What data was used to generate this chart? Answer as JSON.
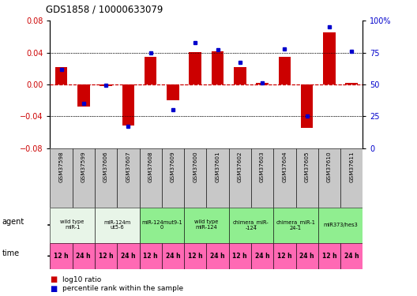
{
  "title": "GDS1858 / 10000633079",
  "samples": [
    "GSM37598",
    "GSM37599",
    "GSM37606",
    "GSM37607",
    "GSM37608",
    "GSM37609",
    "GSM37600",
    "GSM37601",
    "GSM37602",
    "GSM37603",
    "GSM37604",
    "GSM37605",
    "GSM37610",
    "GSM37611"
  ],
  "log10_ratio": [
    0.022,
    -0.028,
    -0.002,
    -0.052,
    0.035,
    -0.02,
    0.041,
    0.042,
    0.022,
    0.002,
    0.035,
    -0.055,
    0.065,
    0.002
  ],
  "percentile_rank": [
    62,
    35,
    49,
    17,
    75,
    30,
    83,
    77,
    67,
    51,
    78,
    25,
    95,
    76
  ],
  "agent_groups": [
    {
      "label": "wild type\nmiR-1",
      "cols": [
        0,
        1
      ],
      "color": "#e8f5e8"
    },
    {
      "label": "miR-124m\nut5-6",
      "cols": [
        2,
        3
      ],
      "color": "#e8f5e8"
    },
    {
      "label": "miR-124mut9-1\n0",
      "cols": [
        4,
        5
      ],
      "color": "#90ee90"
    },
    {
      "label": "wild type\nmiR-124",
      "cols": [
        6,
        7
      ],
      "color": "#90ee90"
    },
    {
      "label": "chimera_miR-\n-124",
      "cols": [
        8,
        9
      ],
      "color": "#90ee90"
    },
    {
      "label": "chimera_miR-1\n24-1",
      "cols": [
        10,
        11
      ],
      "color": "#90ee90"
    },
    {
      "label": "miR373/hes3",
      "cols": [
        12,
        13
      ],
      "color": "#90ee90"
    }
  ],
  "time_labels": [
    "12 h",
    "24 h",
    "12 h",
    "24 h",
    "12 h",
    "24 h",
    "12 h",
    "24 h",
    "12 h",
    "24 h",
    "12 h",
    "24 h",
    "12 h",
    "24 h"
  ],
  "ylim_left": [
    -0.08,
    0.08
  ],
  "ylim_right": [
    0,
    100
  ],
  "yticks_left": [
    -0.08,
    -0.04,
    0,
    0.04,
    0.08
  ],
  "yticks_right": [
    0,
    25,
    50,
    75,
    100
  ],
  "bar_color": "#cc0000",
  "dot_color": "#0000cc",
  "bg_color_label": "#c8c8c8",
  "bg_color_time": "#ff69b4",
  "legend_items": [
    {
      "color": "#cc0000",
      "label": "log10 ratio"
    },
    {
      "color": "#0000cc",
      "label": "percentile rank within the sample"
    }
  ]
}
